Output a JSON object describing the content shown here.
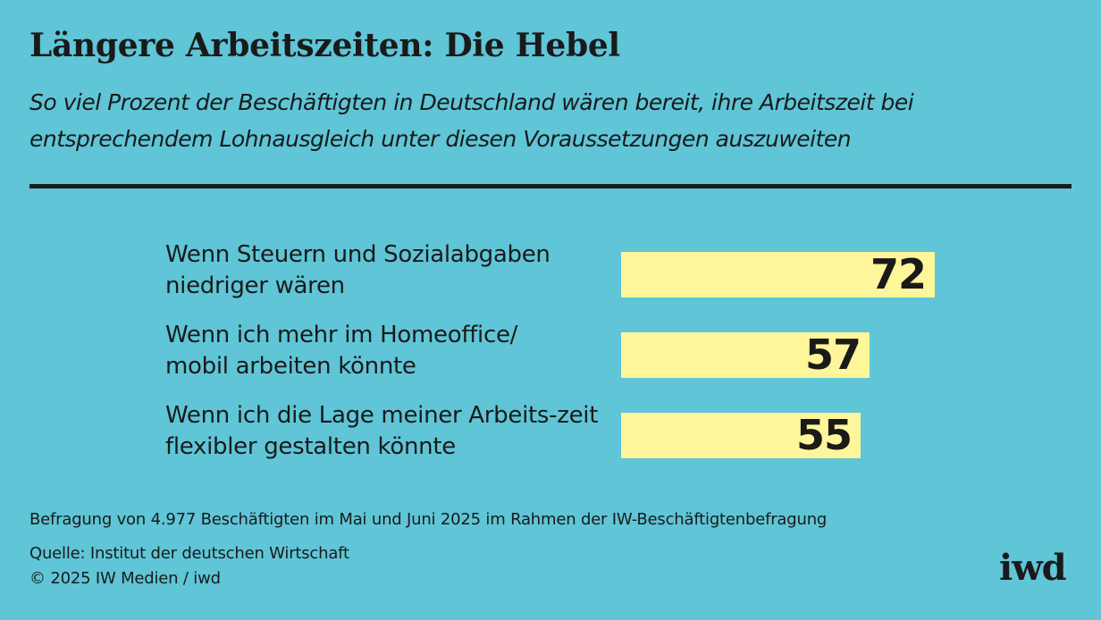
{
  "header": {
    "title": "Längere Arbeitszeiten: Die Hebel",
    "subtitle": "So viel Prozent der Beschäftigten in Deutschland wären bereit, ihre Arbeitszeit bei entsprechendem Lohnausgleich unter diesen Voraussetzungen auszuweiten"
  },
  "chart_data": {
    "type": "bar",
    "orientation": "horizontal",
    "categories": [
      "Wenn Steuern und Sozialabgaben niedriger wären",
      "Wenn ich mehr im Homeoffice/ mobil arbeiten könnte",
      "Wenn ich die Lage meiner Arbeits-zeit flexibler gestalten könnte"
    ],
    "values": [
      72,
      57,
      55
    ],
    "title": "Längere Arbeitszeiten: Die Hebel",
    "xlabel": "",
    "ylabel": "",
    "xlim": [
      0,
      100
    ],
    "grid": false,
    "data_labels": true,
    "bar_color": "#fff59a",
    "background_color": "#5fc5d7"
  },
  "footer": {
    "survey_note": "Befragung von 4.977 Beschäftigten im Mai und Juni 2025 im Rahmen der IW-Beschäftigtenbefragung",
    "source": "Quelle: Institut der deutschen Wirtschaft",
    "copyright": "© 2025 IW Medien / iwd",
    "logo_text": "iwd"
  }
}
